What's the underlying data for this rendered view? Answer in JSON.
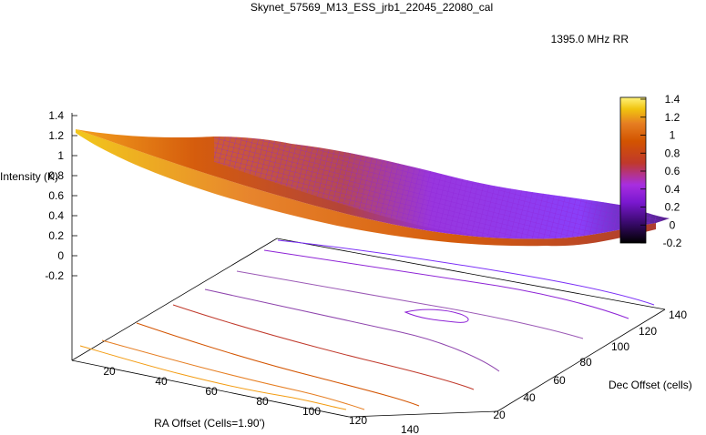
{
  "chart_data": {
    "type": "surface",
    "title": "Skynet_57569_M13_ESS_jrb1_22045_22080_cal",
    "legend": {
      "label": "1395.0 MHz RR",
      "placement": "top-right"
    },
    "xlabel": "RA Offset (Cells=1.90')",
    "ylabel": "Dec Offset (cells)",
    "zlabel": "Intensity (K)",
    "x_ticks": [
      "20",
      "40",
      "60",
      "80",
      "100",
      "120",
      "140"
    ],
    "y_ticks": [
      "20",
      "40",
      "60",
      "80",
      "100",
      "120",
      "140"
    ],
    "z_ticks": [
      "1.4",
      "1.2",
      "1",
      "0.8",
      "0.6",
      "0.4",
      "0.2",
      "0",
      "-0.2"
    ],
    "colorbar_ticks": [
      "1.4",
      "1.2",
      "1",
      "0.8",
      "0.6",
      "0.4",
      "0.2",
      "0",
      "-0.2"
    ],
    "zlim": [
      -0.2,
      1.4
    ],
    "colorbar_range": [
      -0.2,
      1.4
    ],
    "colormap": [
      "#000000",
      "#3a0a6e",
      "#7a18d0",
      "#a82ee0",
      "#c0392b",
      "#d35400",
      "#e67e22",
      "#f1c40f",
      "#fff27a"
    ],
    "contour_colors": [
      "#f39c12",
      "#e67e22",
      "#d35400",
      "#c0392b",
      "#8e44ad",
      "#9b59b6",
      "#8e24d6",
      "#7b2ff7"
    ]
  }
}
